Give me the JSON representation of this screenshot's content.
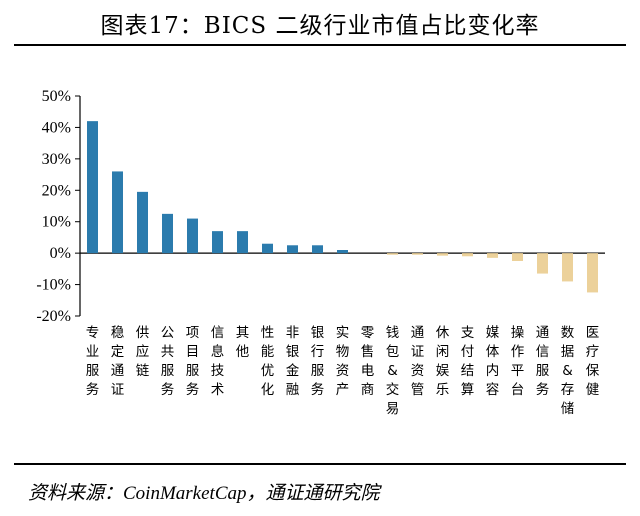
{
  "title": "图表17：BICS 二级行业市值占比变化率",
  "source": "资料来源：CoinMarketCap，通证通研究院",
  "colors": {
    "positive": "#2b7bad",
    "negative": "#ecd19a"
  },
  "chart_data": {
    "type": "bar",
    "title": "图表17：BICS 二级行业市值占比变化率",
    "xlabel": "",
    "ylabel": "",
    "ylim": [
      -20,
      50
    ],
    "yticks": [
      "50%",
      "40%",
      "30%",
      "20%",
      "10%",
      "0%",
      "-10%",
      "-20%"
    ],
    "ytick_values": [
      50,
      40,
      30,
      20,
      10,
      0,
      -10,
      -20
    ],
    "grid": false,
    "categories": [
      "专业服务",
      "稳定通证",
      "供应链",
      "公共服务",
      "项目服务",
      "信息技术",
      "其他",
      "性能优化",
      "非银金融",
      "银行服务",
      "实物资产",
      "零售电商",
      "钱包&交易",
      "通证资管",
      "休闲娱乐",
      "支付结算",
      "媒体内容",
      "操作平台",
      "通信服务",
      "数据&存储",
      "医疗保健"
    ],
    "values": [
      42,
      26,
      19.5,
      12.5,
      11,
      7,
      7,
      3,
      2.5,
      2.5,
      1,
      0,
      -0.5,
      -0.5,
      -0.8,
      -1,
      -1.5,
      -2.5,
      -6.5,
      -9,
      -12.5
    ]
  }
}
